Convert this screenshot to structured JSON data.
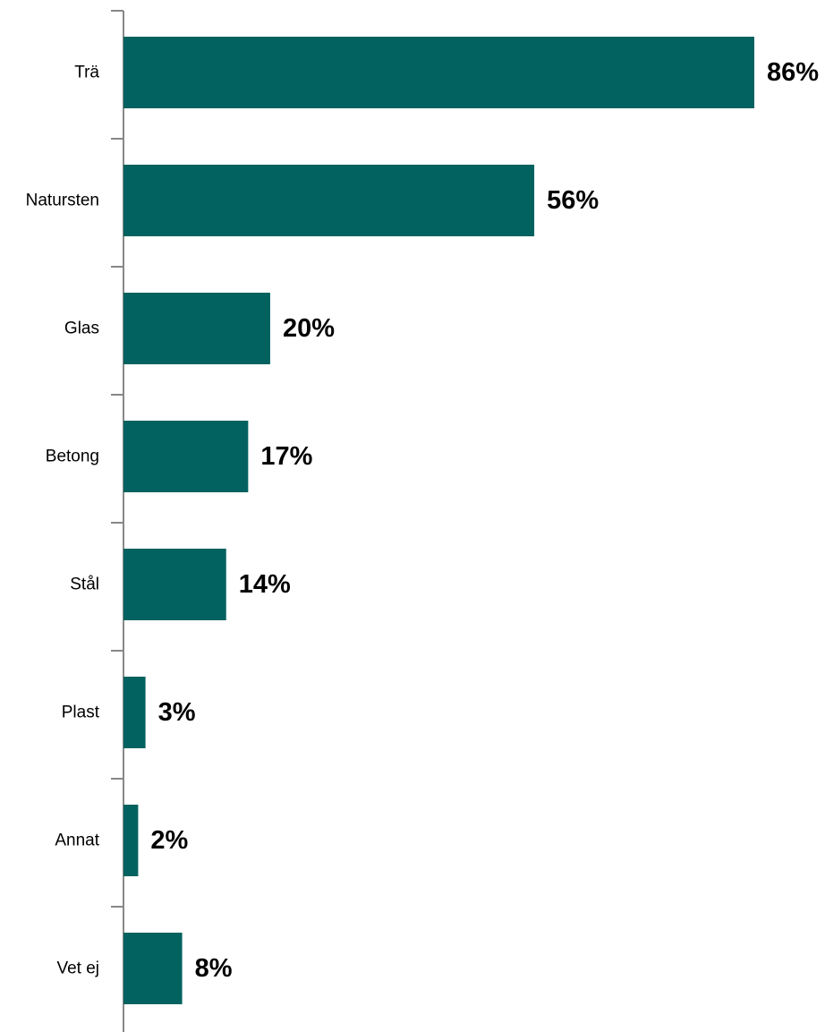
{
  "chart_data": {
    "type": "bar",
    "orientation": "horizontal",
    "categories": [
      "Trä",
      "Natursten",
      "Glas",
      "Betong",
      "Stål",
      "Plast",
      "Annat",
      "Vet ej"
    ],
    "values": [
      86,
      56,
      20,
      17,
      14,
      3,
      2,
      8
    ],
    "value_labels": [
      "86%",
      "56%",
      "20%",
      "17%",
      "14%",
      "3%",
      "2%",
      "8%"
    ],
    "unit": "%",
    "xlim": [
      0,
      86
    ],
    "bar_color": "#02625f",
    "axis_color": "#888888",
    "grid": false,
    "legend": false
  }
}
